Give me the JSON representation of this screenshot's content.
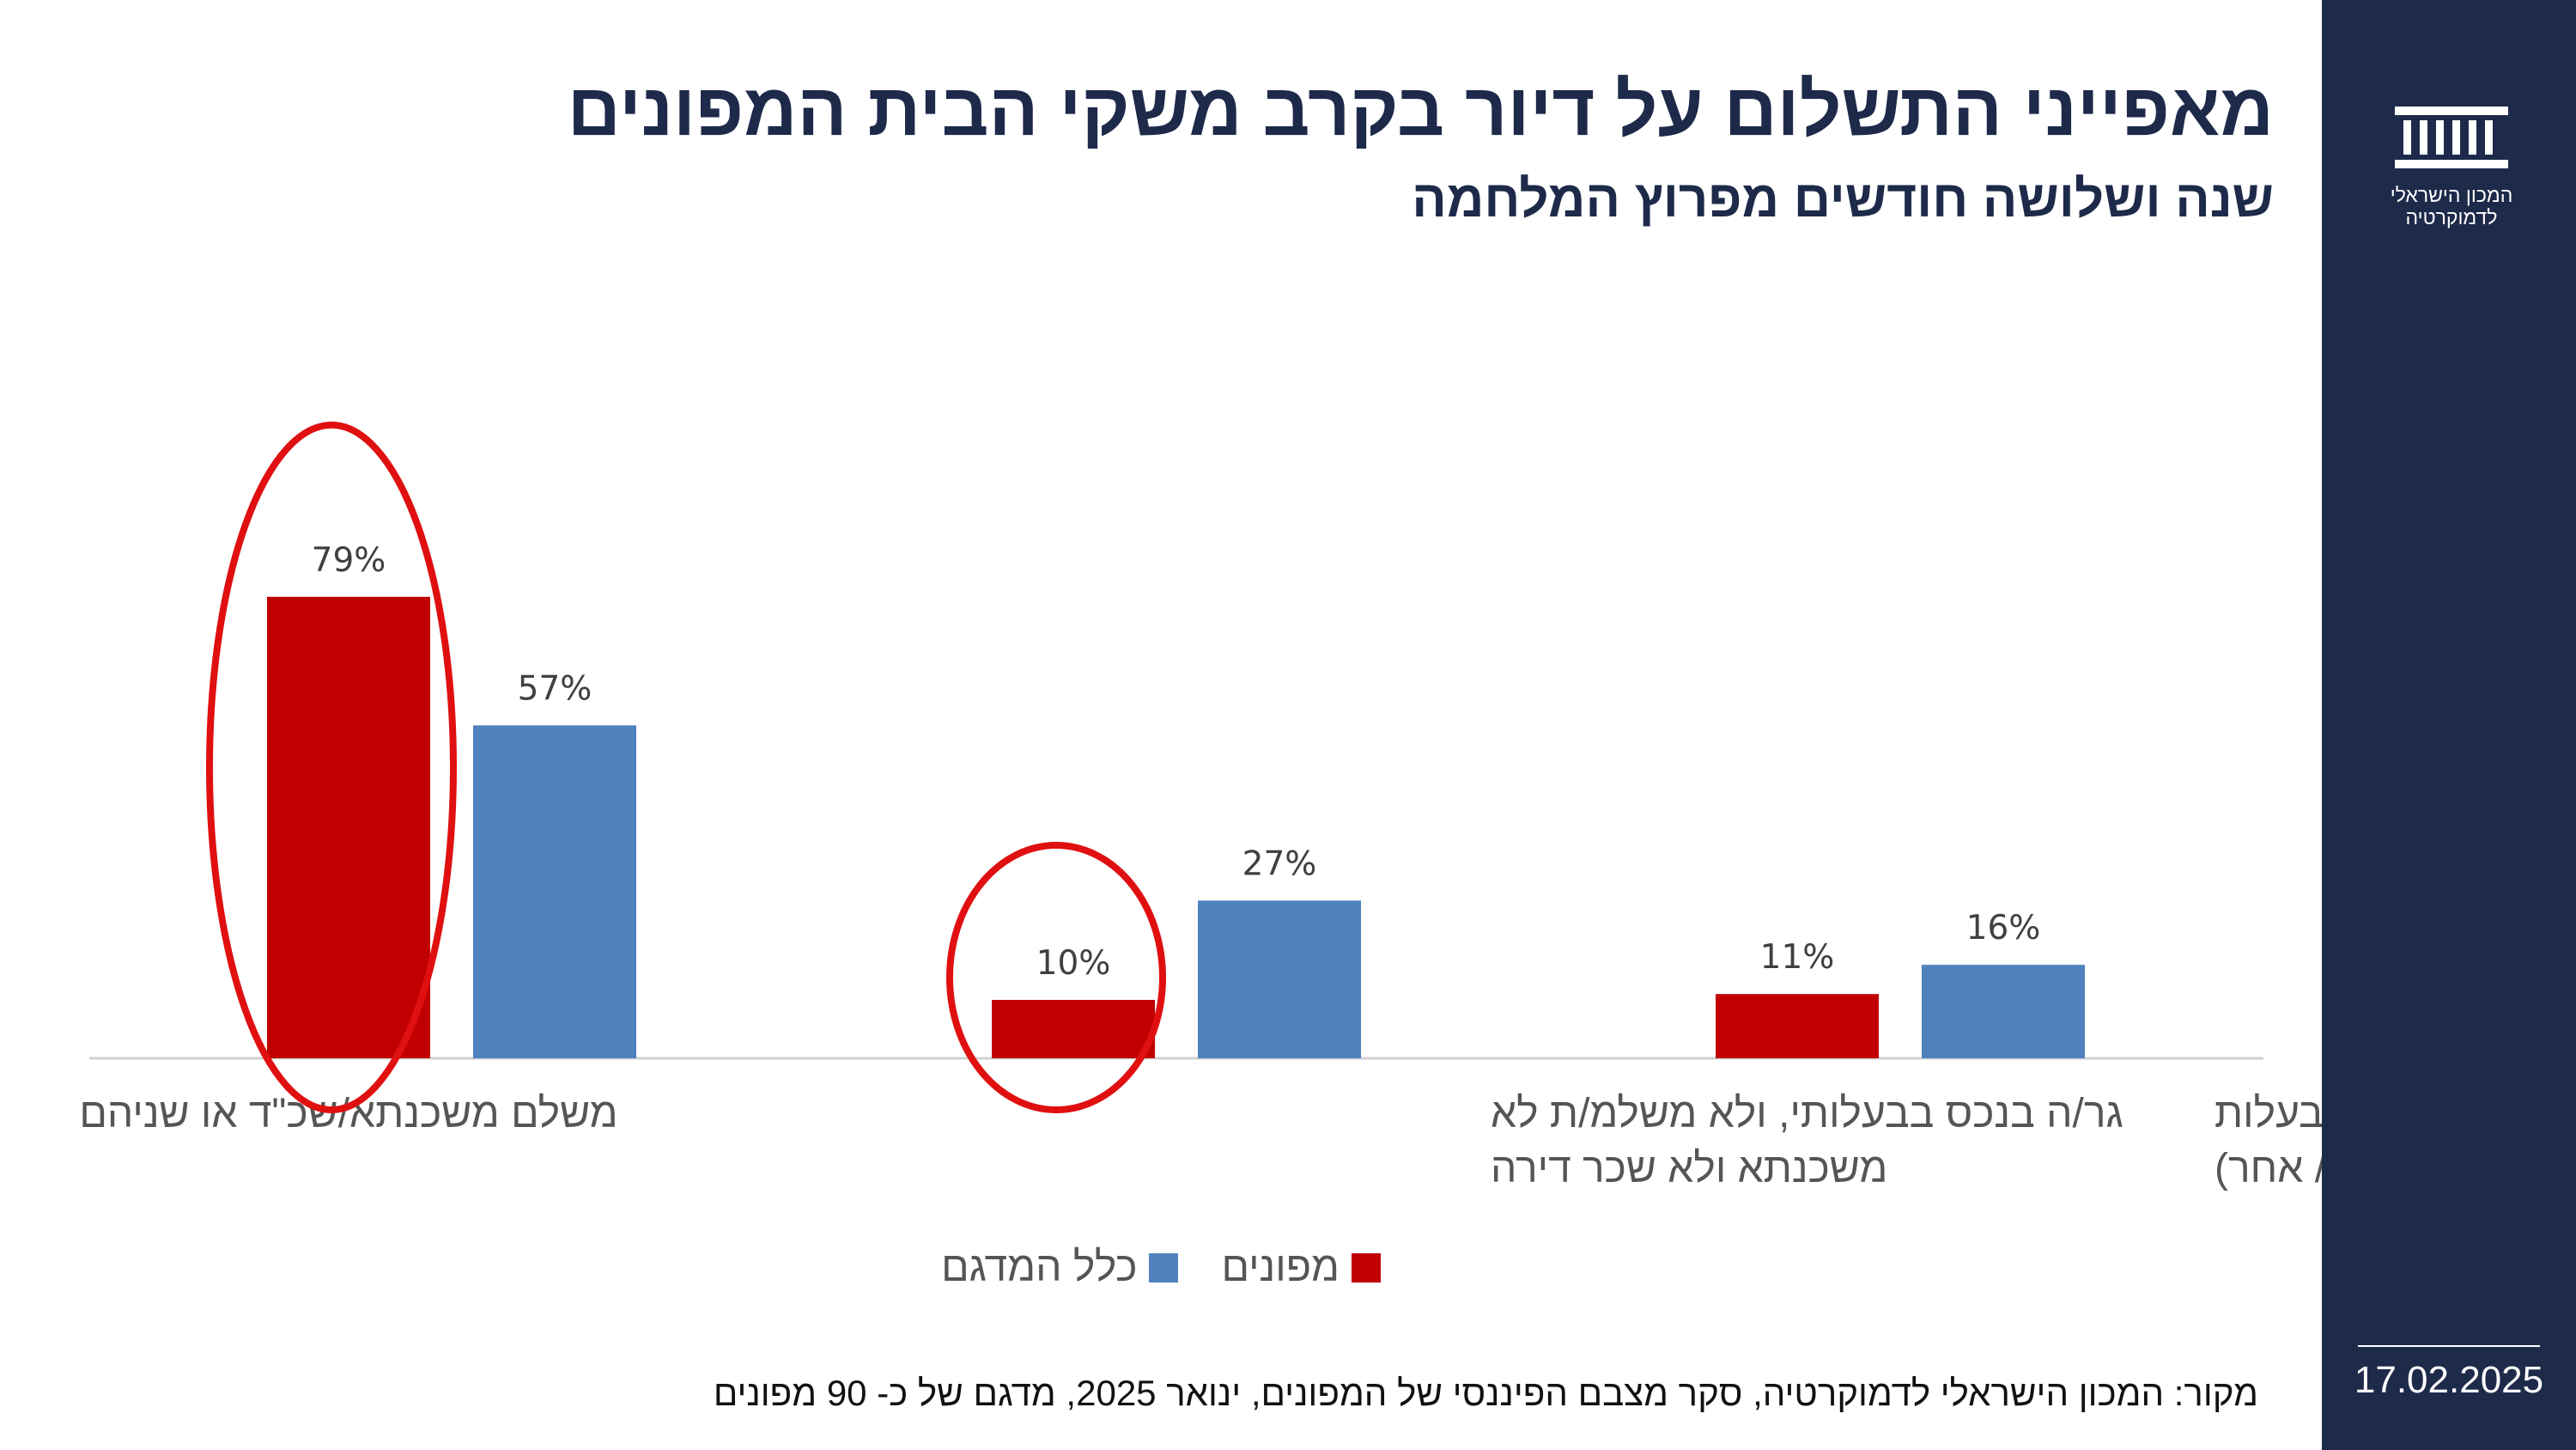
{
  "title": "מאפייני התשלום על דיור בקרב משקי הבית המפונים",
  "subtitle": "שנה ושלושה חודשים מפרוץ המלחמה",
  "logo": {
    "line1": "המכון הישראלי",
    "line2": "לדמוקרטיה"
  },
  "date": "17.02.2025",
  "source": "מקור: המכון הישראלי לדמוקרטיה,  סקר מצבם הפיננסי של המפונים, ינואר 2025, מדגם של כ- 90 מפונים",
  "colors": {
    "evacuees": "#c00000",
    "sample": "#4f81bd",
    "sidebar": "#1e2a4a",
    "highlight": "#e01010"
  },
  "chart_data": {
    "type": "bar",
    "title": "מאפייני התשלום על דיור בקרב משקי הבית המפונים",
    "subtitle": "שנה ושלושה חודשים מפרוץ המלחמה",
    "categories": [
      [
        "משלם משכנתא/שכ\"ד או שניהם"
      ],
      [
        "גר/ה בנכס בבעלותי, ולא משלמ/ת לא",
        "משכנתא ולא שכר דירה"
      ],
      [
        "גר/ה ללא תשלום בנכס בבעלות",
        "מישהו אחר (הורים/ בן משפחה/ אחר)"
      ]
    ],
    "series": [
      {
        "name": "מפונים",
        "color": "#c00000",
        "values": [
          79,
          10,
          11
        ],
        "labels": [
          "79%",
          "10%",
          "11%"
        ]
      },
      {
        "name": "כלל המדגם",
        "color": "#4f81bd",
        "values": [
          57,
          27,
          16
        ],
        "labels": [
          "57%",
          "27%",
          "16%"
        ]
      }
    ],
    "ylim": [
      0,
      100
    ],
    "unit": "%",
    "grid": false,
    "legend_position": "bottom",
    "highlighted": [
      {
        "category_index": 0,
        "series_index": 0
      },
      {
        "category_index": 1,
        "series_index": 0
      }
    ]
  }
}
